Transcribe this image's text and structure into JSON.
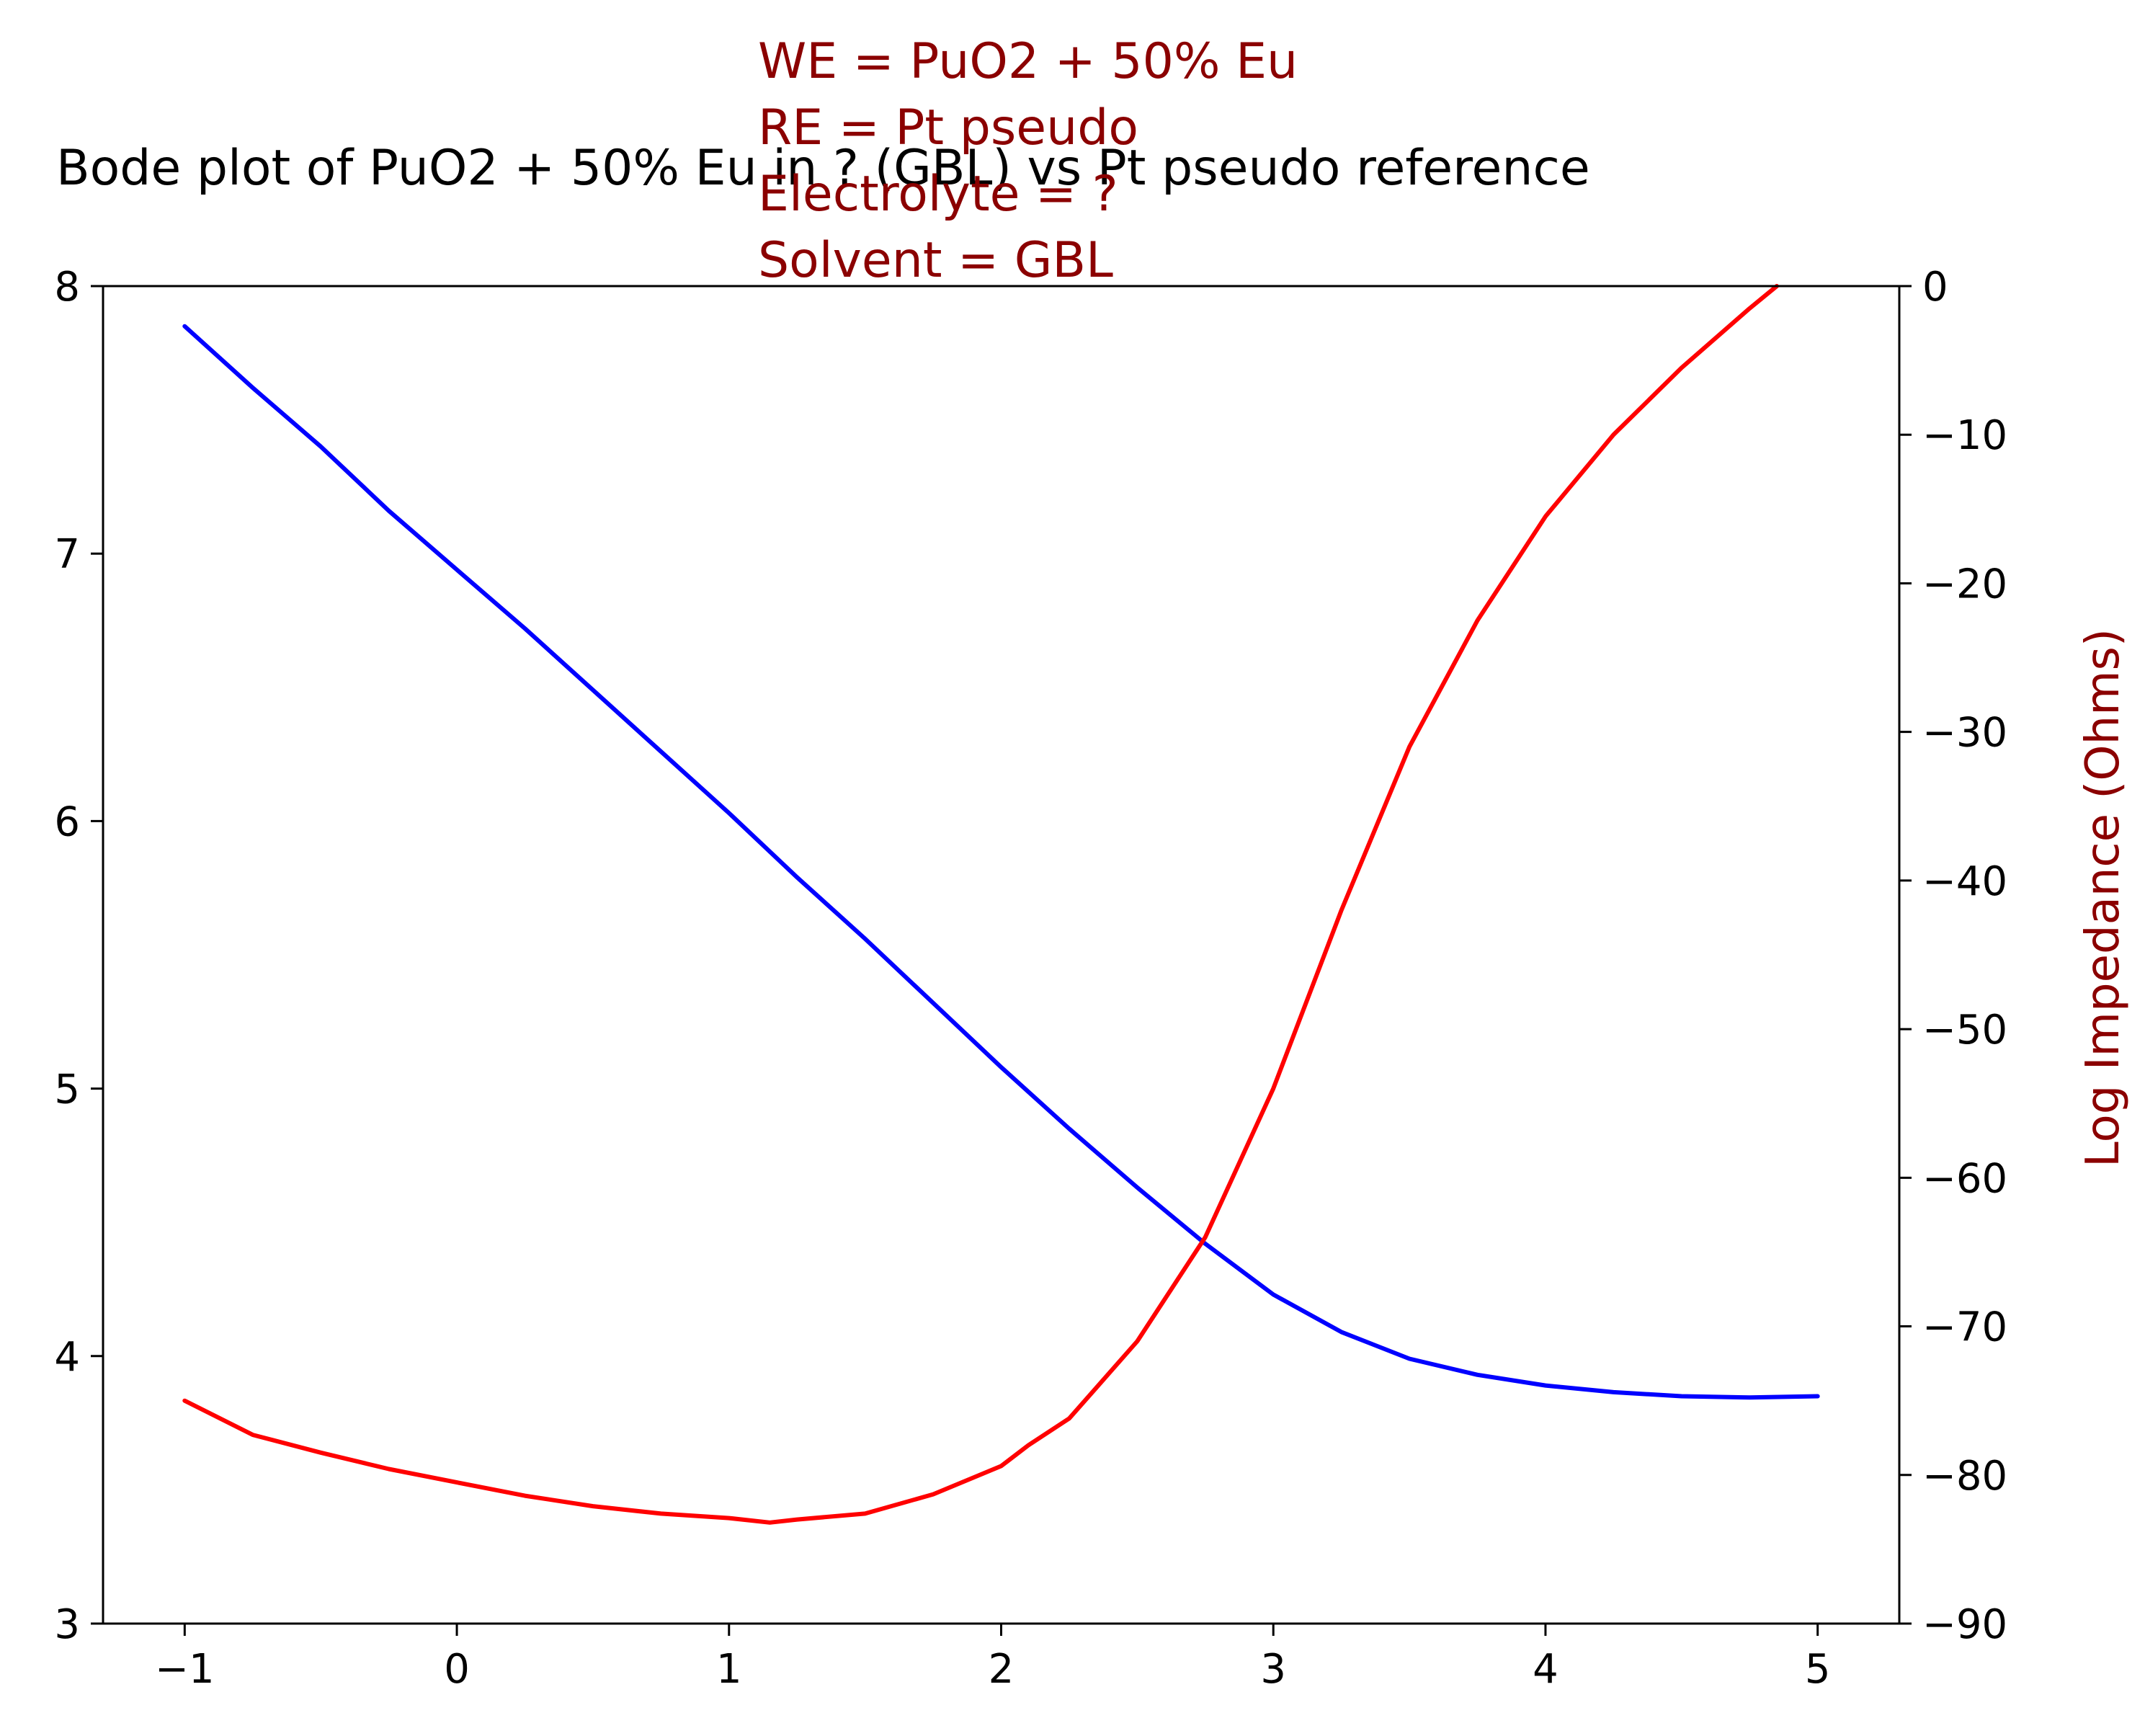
{
  "chart_data": {
    "type": "line",
    "title": "Bode plot of PuO2 + 50% Eu in ? (GBL) vs Pt pseudo reference",
    "annotation_lines": [
      "WE = PuO2 + 50% Eu",
      "RE = Pt pseudo",
      "Electrolyte = ?",
      "Solvent = GBL"
    ],
    "xlabel": "",
    "ylabel_left": "",
    "ylabel_right": "Log Impedance (Ohms)",
    "xlim": [
      -1.3,
      5.3
    ],
    "ylim_left": [
      3,
      8
    ],
    "ylim_right": [
      -90,
      0
    ],
    "x_ticks": [
      -1,
      0,
      1,
      2,
      3,
      4,
      5
    ],
    "x_tick_labels": [
      "−1",
      "0",
      "1",
      "2",
      "3",
      "4",
      "5"
    ],
    "y_left_ticks": [
      3,
      4,
      5,
      6,
      7,
      8
    ],
    "y_left_tick_labels": [
      "3",
      "4",
      "5",
      "6",
      "7",
      "8"
    ],
    "y_right_ticks": [
      -90,
      -80,
      -70,
      -60,
      -50,
      -40,
      -30,
      -20,
      -10,
      0
    ],
    "y_right_tick_labels": [
      "−90",
      "−80",
      "−70",
      "−60",
      "−50",
      "−40",
      "−30",
      "−20",
      "−10",
      "0"
    ],
    "grid": false,
    "colors": {
      "impedance": "#0000ff",
      "phase": "#ff0000",
      "annotation": "#8b0000",
      "axis": "#000000"
    },
    "series": [
      {
        "axis": "left",
        "color": "#0000ff",
        "x": [
          -1.0,
          -0.75,
          -0.5,
          -0.25,
          0.0,
          0.25,
          0.5,
          0.75,
          1.0,
          1.25,
          1.5,
          1.75,
          2.0,
          2.25,
          2.5,
          2.75,
          3.0,
          3.25,
          3.5,
          3.75,
          4.0,
          4.25,
          4.5,
          4.75,
          5.0
        ],
        "values": [
          7.85,
          7.62,
          7.4,
          7.16,
          6.94,
          6.72,
          6.49,
          6.26,
          6.03,
          5.79,
          5.56,
          5.32,
          5.08,
          4.85,
          4.63,
          4.42,
          4.23,
          4.09,
          3.99,
          3.93,
          3.89,
          3.865,
          3.85,
          3.845,
          3.85
        ]
      },
      {
        "axis": "right",
        "color": "#ff0000",
        "x": [
          -1.0,
          -0.75,
          -0.5,
          -0.25,
          0.0,
          0.25,
          0.5,
          0.75,
          1.0,
          1.15,
          1.25,
          1.5,
          1.75,
          2.0,
          2.1,
          2.25,
          2.5,
          2.75,
          3.0,
          3.25,
          3.5,
          3.75,
          4.0,
          4.25,
          4.5,
          4.75,
          4.85
        ],
        "values": [
          -75.0,
          -77.3,
          -78.5,
          -79.6,
          -80.5,
          -81.4,
          -82.1,
          -82.6,
          -82.9,
          -83.2,
          -83.0,
          -82.6,
          -81.3,
          -79.4,
          -78.0,
          -76.2,
          -71.0,
          -64.0,
          -54.0,
          -42.0,
          -31.0,
          -22.5,
          -15.5,
          -10.0,
          -5.5,
          -1.5,
          0.0
        ]
      }
    ]
  }
}
